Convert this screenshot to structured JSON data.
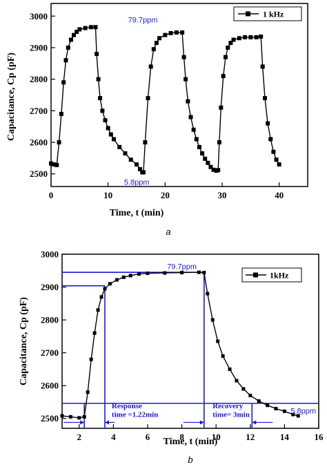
{
  "chart_data": [
    {
      "type": "line",
      "panel_label": "a",
      "xlabel": "Time, t (min)",
      "ylabel": "Capacitance, Cp (pF)",
      "xlim": [
        0,
        45
      ],
      "ylim": [
        2460,
        3040
      ],
      "xticks": [
        0,
        10,
        20,
        30,
        40
      ],
      "yticks": [
        2500,
        2600,
        2700,
        2800,
        2900,
        3000
      ],
      "legend": {
        "label": "1 kHz",
        "position": "top-right"
      },
      "annotations": [
        {
          "text": "79.7ppm",
          "x": 13.5,
          "y": 2980
        },
        {
          "text": "5.8ppm",
          "x": 12.8,
          "y": 2466
        }
      ],
      "series": [
        {
          "name": "1 kHz",
          "x": [
            0,
            0.5,
            1.0,
            1.4,
            1.8,
            2.2,
            2.6,
            3.0,
            3.5,
            4.0,
            4.5,
            5.0,
            6.0,
            7.0,
            7.8,
            8.0,
            8.3,
            8.6,
            9.0,
            9.5,
            10.0,
            10.5,
            11.0,
            12.0,
            13.0,
            14.0,
            15.0,
            15.6,
            16.0,
            16.2,
            16.5,
            17.0,
            17.5,
            18.0,
            18.5,
            19.0,
            20.0,
            21.0,
            22.0,
            23.0,
            23.3,
            23.6,
            24.0,
            24.5,
            25.0,
            25.5,
            26.0,
            26.5,
            27.0,
            27.5,
            28.0,
            28.5,
            29.0,
            29.3,
            29.5,
            29.8,
            30.2,
            30.6,
            31.0,
            31.5,
            32.0,
            33.0,
            34.0,
            35.0,
            36.0,
            36.8,
            37.1,
            37.5,
            38.0,
            38.5,
            39.0,
            39.5,
            40.0
          ],
          "y": [
            2533,
            2530,
            2528,
            2600,
            2690,
            2790,
            2860,
            2900,
            2925,
            2940,
            2950,
            2958,
            2962,
            2965,
            2965,
            2880,
            2800,
            2740,
            2700,
            2670,
            2645,
            2625,
            2610,
            2585,
            2565,
            2545,
            2530,
            2515,
            2505,
            2505,
            2600,
            2740,
            2840,
            2895,
            2915,
            2930,
            2940,
            2946,
            2948,
            2948,
            2870,
            2800,
            2730,
            2680,
            2640,
            2610,
            2585,
            2565,
            2548,
            2535,
            2522,
            2513,
            2510,
            2512,
            2600,
            2710,
            2810,
            2870,
            2900,
            2915,
            2925,
            2930,
            2933,
            2933,
            2933,
            2935,
            2840,
            2740,
            2660,
            2610,
            2570,
            2545,
            2530
          ]
        }
      ]
    },
    {
      "type": "line",
      "panel_label": "b",
      "xlabel": "Time, t (min)",
      "ylabel": "Capacitance, Cp (pF)",
      "xlim": [
        1,
        16
      ],
      "ylim": [
        2470,
        3000
      ],
      "xticks": [
        2,
        4,
        6,
        8,
        10,
        12,
        14,
        16
      ],
      "yticks": [
        2500,
        2600,
        2700,
        2800,
        2900,
        3000
      ],
      "legend": {
        "label": "1kHz",
        "position": "top-right"
      },
      "annotations": [
        {
          "text": "79.7ppm",
          "x": 8.0,
          "y": 2955
        },
        {
          "text": "5.8ppm",
          "x": 15.1,
          "y": 2515
        },
        {
          "text": "Response",
          "x": 3.9,
          "y": 2531
        },
        {
          "text": "time =1.22min",
          "x": 3.9,
          "y": 2505
        },
        {
          "text": "Recovery",
          "x": 9.8,
          "y": 2531
        },
        {
          "text": "time= 3min",
          "x": 9.8,
          "y": 2505
        }
      ],
      "reference_lines": {
        "horizontal": [
          2945,
          2904,
          2546
        ],
        "vertical": [
          2.3,
          3.5,
          9.3,
          12.1
        ]
      },
      "series": [
        {
          "name": "1kHz",
          "x": [
            1.0,
            1.5,
            2.0,
            2.3,
            2.5,
            2.7,
            2.9,
            3.1,
            3.3,
            3.5,
            3.8,
            4.2,
            4.6,
            5.0,
            5.5,
            6.0,
            7.0,
            8.0,
            9.0,
            9.3,
            9.5,
            9.8,
            10.1,
            10.4,
            10.8,
            11.2,
            11.6,
            12.0,
            12.5,
            13.0,
            13.5,
            14.0,
            14.5,
            14.8
          ],
          "y": [
            2508,
            2505,
            2502,
            2505,
            2580,
            2680,
            2760,
            2830,
            2870,
            2895,
            2910,
            2922,
            2930,
            2935,
            2940,
            2942,
            2943,
            2944,
            2945,
            2944,
            2880,
            2800,
            2735,
            2690,
            2650,
            2615,
            2590,
            2570,
            2553,
            2540,
            2530,
            2522,
            2512,
            2508
          ]
        }
      ]
    }
  ]
}
